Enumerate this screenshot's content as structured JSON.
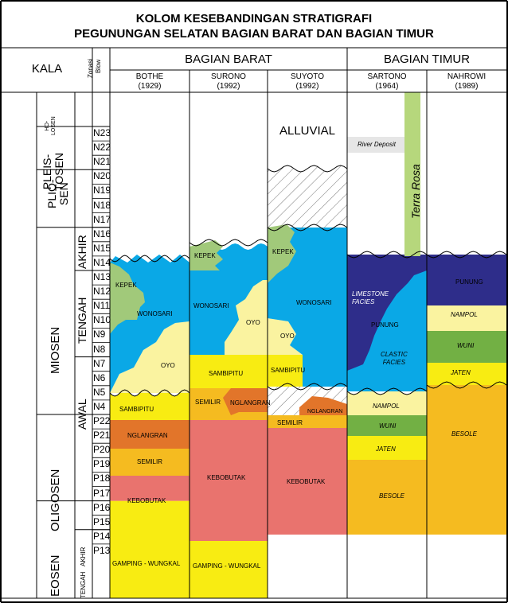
{
  "title": {
    "line1": "KOLOM KESEBANDINGAN STRATIGRAFI",
    "line2": "PEGUNUNGAN SELATAN BAGIAN BARAT DAN BAGIAN TIMUR"
  },
  "header": {
    "kala": "KALA",
    "zonasi": "Zonasi",
    "blow": "Blow",
    "bagian_barat": "BAGIAN BARAT",
    "bagian_timur": "BAGIAN TIMUR",
    "authors": [
      {
        "name": "BOTHE",
        "year": "(1929)"
      },
      {
        "name": "SURONO",
        "year": "(1992)"
      },
      {
        "name": "SUYOTO",
        "year": "(1992)"
      },
      {
        "name": "SARTONO",
        "year": "(1964)"
      },
      {
        "name": "NAHROWI",
        "year": "(1989)"
      }
    ]
  },
  "epochs": {
    "holosen": [
      "HO-",
      "LOSEN"
    ],
    "pleistosen": [
      "PLEIS-",
      "TOSEN"
    ],
    "pliosen": [
      "PLIO-",
      "SEN"
    ],
    "miosen": "MIOSEN",
    "oligosen": "OLIGOSEN",
    "eosen": "EOSEN"
  },
  "subepochs": {
    "akhir": "AKHIR",
    "tengah": "TENGAH",
    "awal": "AWAL",
    "eosen_akhir": "AKHIR",
    "eosen_tengah": "TENGAH"
  },
  "zones": [
    "N23",
    "N22",
    "N21",
    "N20",
    "N19",
    "N18",
    "N17",
    "N16",
    "N15",
    "N14",
    "N13",
    "N12",
    "N11",
    "N10",
    "N9",
    "N8",
    "N7",
    "N6",
    "N5",
    "N4",
    "P22",
    "P21",
    "P20",
    "P19",
    "P18",
    "P17",
    "P16",
    "P15",
    "P14",
    "P13"
  ],
  "units": {
    "alluvial": "ALLUVIAL",
    "river_deposit": "River Deposit",
    "terra_rosa": "Terra Rosa",
    "bothe": {
      "kepek": "KEPEK",
      "wonosari": "WONOSARI",
      "oyo": "OYO",
      "sambipitu": "SAMBIPITU",
      "nglangran": "NGLANGRAN",
      "semilir": "SEMILIR",
      "kebobutak": "KEBOBUTAK",
      "gamping": "GAMPING - WUNGKAL"
    },
    "surono": {
      "kepek": "KEPEK",
      "wonosari": "WONOSARI",
      "oyo": "OYO",
      "sambipitu": "SAMBIPITU",
      "semilir": "SEMILIR",
      "nglangran": "NGLANGRAN",
      "kebobutak": "KEBOBUTAK",
      "gamping": "GAMPING - WUNGKAL"
    },
    "suyoto": {
      "kepek": "KEPEK",
      "wonosari": "WONOSARI",
      "oyo": "OYO",
      "sambipitu": "SAMBIPITU",
      "nglangran": "NGLANGRAN",
      "semilir": "SEMILIR",
      "kebobutak": "KEBOBUTAK"
    },
    "sartono": {
      "limestone": [
        "LIMESTONE",
        "FACIES"
      ],
      "punung": "PUNUNG",
      "clastic": [
        "CLASTIC",
        "FACIES"
      ],
      "nampol": "NAMPOL",
      "wuni": "WUNI",
      "jaten": "JATEN",
      "besole": "BESOLE"
    },
    "nahrowi": {
      "punung": "PUNUNG",
      "nampol": "NAMPOL",
      "wuni": "WUNI",
      "jaten": "JATEN",
      "besole": "BESOLE"
    }
  },
  "colors": {
    "blue": "#0aa8e6",
    "navy": "#2e2d8a",
    "yellow": "#f8ec12",
    "lightyellow": "#faf3a0",
    "orange": "#e2752a",
    "amber": "#f5bb20",
    "salmon": "#e9736e",
    "green": "#a1c97a",
    "darkgreen": "#72b044",
    "lightgreen": "#b6d77c",
    "gray": "#e6e6e6"
  }
}
